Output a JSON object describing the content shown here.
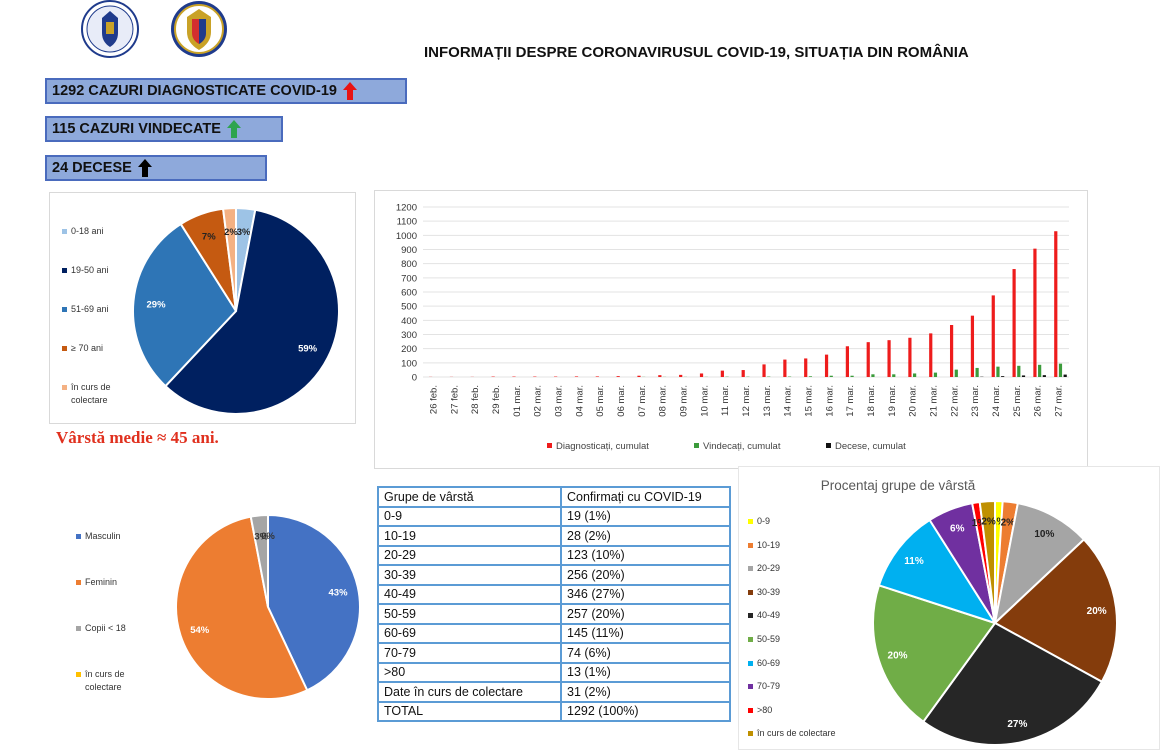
{
  "header": {
    "title": "INFORMAȚII DESPRE CORONAVIRUSUL COVID-19, SITUAȚIA DIN ROMÂNIA"
  },
  "stats": [
    {
      "label": "1292 CAZURI DIAGNOSTICATE COVID-19",
      "arrow": "up",
      "color": "#e81313"
    },
    {
      "label": "115 CAZURI VINDECATE",
      "arrow": "up",
      "color": "#2ea44f"
    },
    {
      "label": "24 DECESE",
      "arrow": "up",
      "color": "#000000"
    }
  ],
  "average_age": "Vârstă medie ≈ 45 ani.",
  "age_table": {
    "headers": [
      "Grupe de vârstă",
      "Confirmați cu COVID-19"
    ],
    "rows": [
      [
        "0-9",
        "19 (1%)"
      ],
      [
        "10-19",
        "28 (2%)"
      ],
      [
        "20-29",
        "123 (10%)"
      ],
      [
        "30-39",
        "256 (20%)"
      ],
      [
        "40-49",
        "346 (27%)"
      ],
      [
        "50-59",
        "257 (20%)"
      ],
      [
        "60-69",
        "145 (11%)"
      ],
      [
        "70-79",
        "74 (6%)"
      ],
      [
        ">80",
        "13 (1%)"
      ],
      [
        "Date în curs de colectare",
        "31 (2%)"
      ],
      [
        "TOTAL",
        "1292 (100%)"
      ]
    ]
  },
  "chart_data": [
    {
      "type": "pie",
      "title": "",
      "categories": [
        "0-18 ani",
        "19-50 ani",
        "51-69 ani",
        "≥ 70 ani",
        "în curs de colectare"
      ],
      "values": [
        3,
        59,
        29,
        7,
        2
      ],
      "labels": [
        "3%",
        "59%",
        "29%",
        "7%",
        "2%"
      ],
      "colors": [
        "#9dc3e6",
        "#002060",
        "#2e75b6",
        "#c55a11",
        "#f4b183"
      ],
      "legend": "left"
    },
    {
      "type": "bar",
      "title": "",
      "categories": [
        "26 feb.",
        "27 feb.",
        "28 feb.",
        "29 feb.",
        "01 mar.",
        "02 mar.",
        "03 mar.",
        "04 mar.",
        "05 mar.",
        "06 mar.",
        "07 mar.",
        "08 mar.",
        "09 mar.",
        "10 mar.",
        "11 mar.",
        "12 mar.",
        "13 mar.",
        "14 mar.",
        "15 mar.",
        "16 mar.",
        "17 mar.",
        "18 mar.",
        "19 mar.",
        "20 mar.",
        "21 mar.",
        "22 mar.",
        "23 mar.",
        "24 mar.",
        "25 mar.",
        "26 mar.",
        "27 mar."
      ],
      "series": [
        {
          "name": "Diagnosticați, cumulat",
          "color": "#ee1c1c",
          "values": [
            1,
            1,
            1,
            3,
            3,
            3,
            3,
            4,
            4,
            6,
            9,
            13,
            15,
            25,
            45,
            49,
            89,
            123,
            131,
            158,
            217,
            246,
            260,
            277,
            308,
            367,
            433,
            576,
            762,
            906,
            1029
          ]
        },
        {
          "name": "Vindecați, cumulat",
          "color": "#3b9b3b",
          "values": [
            0,
            0,
            0,
            0,
            0,
            0,
            0,
            0,
            0,
            0,
            1,
            1,
            1,
            1,
            2,
            2,
            3,
            3,
            5,
            9,
            9,
            19,
            19,
            25,
            31,
            52,
            64,
            73,
            79,
            86,
            94
          ]
        },
        {
          "name": "Decese, cumulat",
          "color": "#111111",
          "values": [
            0,
            0,
            0,
            0,
            0,
            0,
            0,
            0,
            0,
            0,
            0,
            0,
            0,
            0,
            0,
            0,
            0,
            0,
            0,
            0,
            0,
            0,
            0,
            0,
            0,
            0,
            2,
            6,
            11,
            13,
            17
          ]
        }
      ],
      "ylim": [
        0,
        1200
      ],
      "yticks": [
        0,
        100,
        200,
        300,
        400,
        500,
        600,
        700,
        800,
        900,
        1000,
        1100,
        1200
      ],
      "grid": true,
      "legend": "bottom"
    },
    {
      "type": "pie",
      "title": "",
      "categories": [
        "Masculin",
        "Feminin",
        "Copii < 18",
        "în curs de colectare"
      ],
      "values": [
        43,
        54,
        3,
        0
      ],
      "labels": [
        "43%",
        "54%",
        "3%",
        "0%"
      ],
      "colors": [
        "#4472c4",
        "#ed7d31",
        "#a5a5a5",
        "#ffc000"
      ],
      "legend": "left"
    },
    {
      "type": "pie",
      "title": "Procentaj grupe de vârstă",
      "categories": [
        "0-9",
        "10-19",
        "20-29",
        "30-39",
        "40-49",
        "50-59",
        "60-69",
        "70-79",
        ">80",
        "în curs de colectare"
      ],
      "values": [
        1,
        2,
        10,
        20,
        27,
        20,
        11,
        6,
        1,
        2
      ],
      "labels": [
        "1%",
        "2%",
        "10%",
        "20%",
        "27%",
        "20%",
        "11%",
        "6%",
        "1%",
        "2%"
      ],
      "colors": [
        "#ffff00",
        "#ed7d31",
        "#a5a5a5",
        "#843c0c",
        "#262626",
        "#70ad47",
        "#00b0f0",
        "#7030a0",
        "#ff0000",
        "#bf9000"
      ],
      "legend": "left"
    }
  ]
}
